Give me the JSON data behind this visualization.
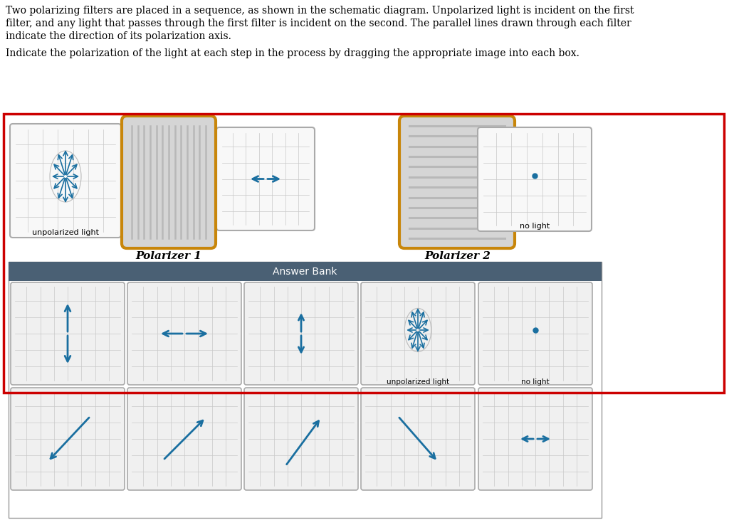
{
  "text_lines": [
    "Two polarizing filters are placed in a sequence, as shown in the schematic diagram. Unpolarized light is incident on the first",
    "filter, and any light that passes through the first filter is incident on the second. The parallel lines drawn through each filter",
    "indicate the direction of its polarization axis.",
    "",
    "Indicate the polarization of the light at each step in the process by dragging the appropriate image into each box."
  ],
  "red_border_color": "#cc0000",
  "bg_color": "#ffffff",
  "grid_color": "#c8c8c8",
  "arrow_color": "#1a6fa0",
  "polarizer_border": "#c8860a",
  "polarizer_fill": "#d5d5d5",
  "polarizer_line_color": "#b8b8b8",
  "answer_bank_header_color": "#4a6074",
  "box_border_color": "#aaaaaa",
  "box_fill_color": "#f8f8f8",
  "ab_box_fill_color": "#f0f0f0",
  "label_fontsize": 10.5,
  "item_label_fontsize": 7.5
}
